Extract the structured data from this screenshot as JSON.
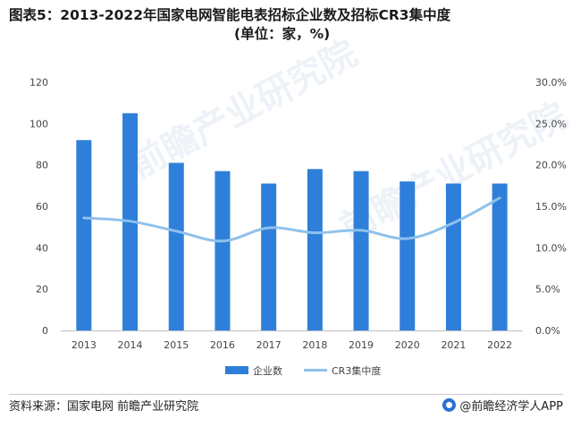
{
  "title_line1": "图表5：2013-2022年国家电网智能电表招标企业数及招标CR3集中度",
  "title_line2": "(单位：家，%)",
  "footer": {
    "source": "资料来源：国家电网 前瞻产业研究院",
    "brand": "@前瞻经济学人APP"
  },
  "watermark": "前瞻产业研究院",
  "colors": {
    "bar": "#2e7fd9",
    "line": "#8fc1ec",
    "axis": "#bfbfbf",
    "text": "#444444"
  },
  "chart_data": {
    "type": "bar",
    "categories": [
      "2013",
      "2014",
      "2015",
      "2016",
      "2017",
      "2018",
      "2019",
      "2020",
      "2021",
      "2022"
    ],
    "series": [
      {
        "name": "企业数",
        "type": "bar",
        "axis": "left",
        "values": [
          92,
          105,
          81,
          77,
          71,
          78,
          77,
          72,
          71,
          71
        ]
      },
      {
        "name": "CR3集中度",
        "type": "line",
        "axis": "right",
        "values": [
          13.6,
          13.2,
          12.0,
          10.8,
          12.4,
          11.8,
          12.1,
          11.1,
          13.0,
          16.0
        ]
      }
    ],
    "y_left": {
      "ticks": [
        "0",
        "20",
        "40",
        "60",
        "80",
        "100",
        "120"
      ],
      "range": [
        0,
        120
      ]
    },
    "y_right": {
      "ticks": [
        "0.0%",
        "5.0%",
        "10.0%",
        "15.0%",
        "20.0%",
        "25.0%",
        "30.0%"
      ],
      "range": [
        0,
        30
      ]
    },
    "legend": "bottom-center",
    "grid": false
  }
}
